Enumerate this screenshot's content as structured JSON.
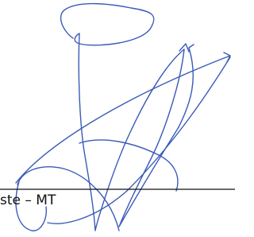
{
  "signature_line": {
    "caption": "ste – MT"
  }
}
